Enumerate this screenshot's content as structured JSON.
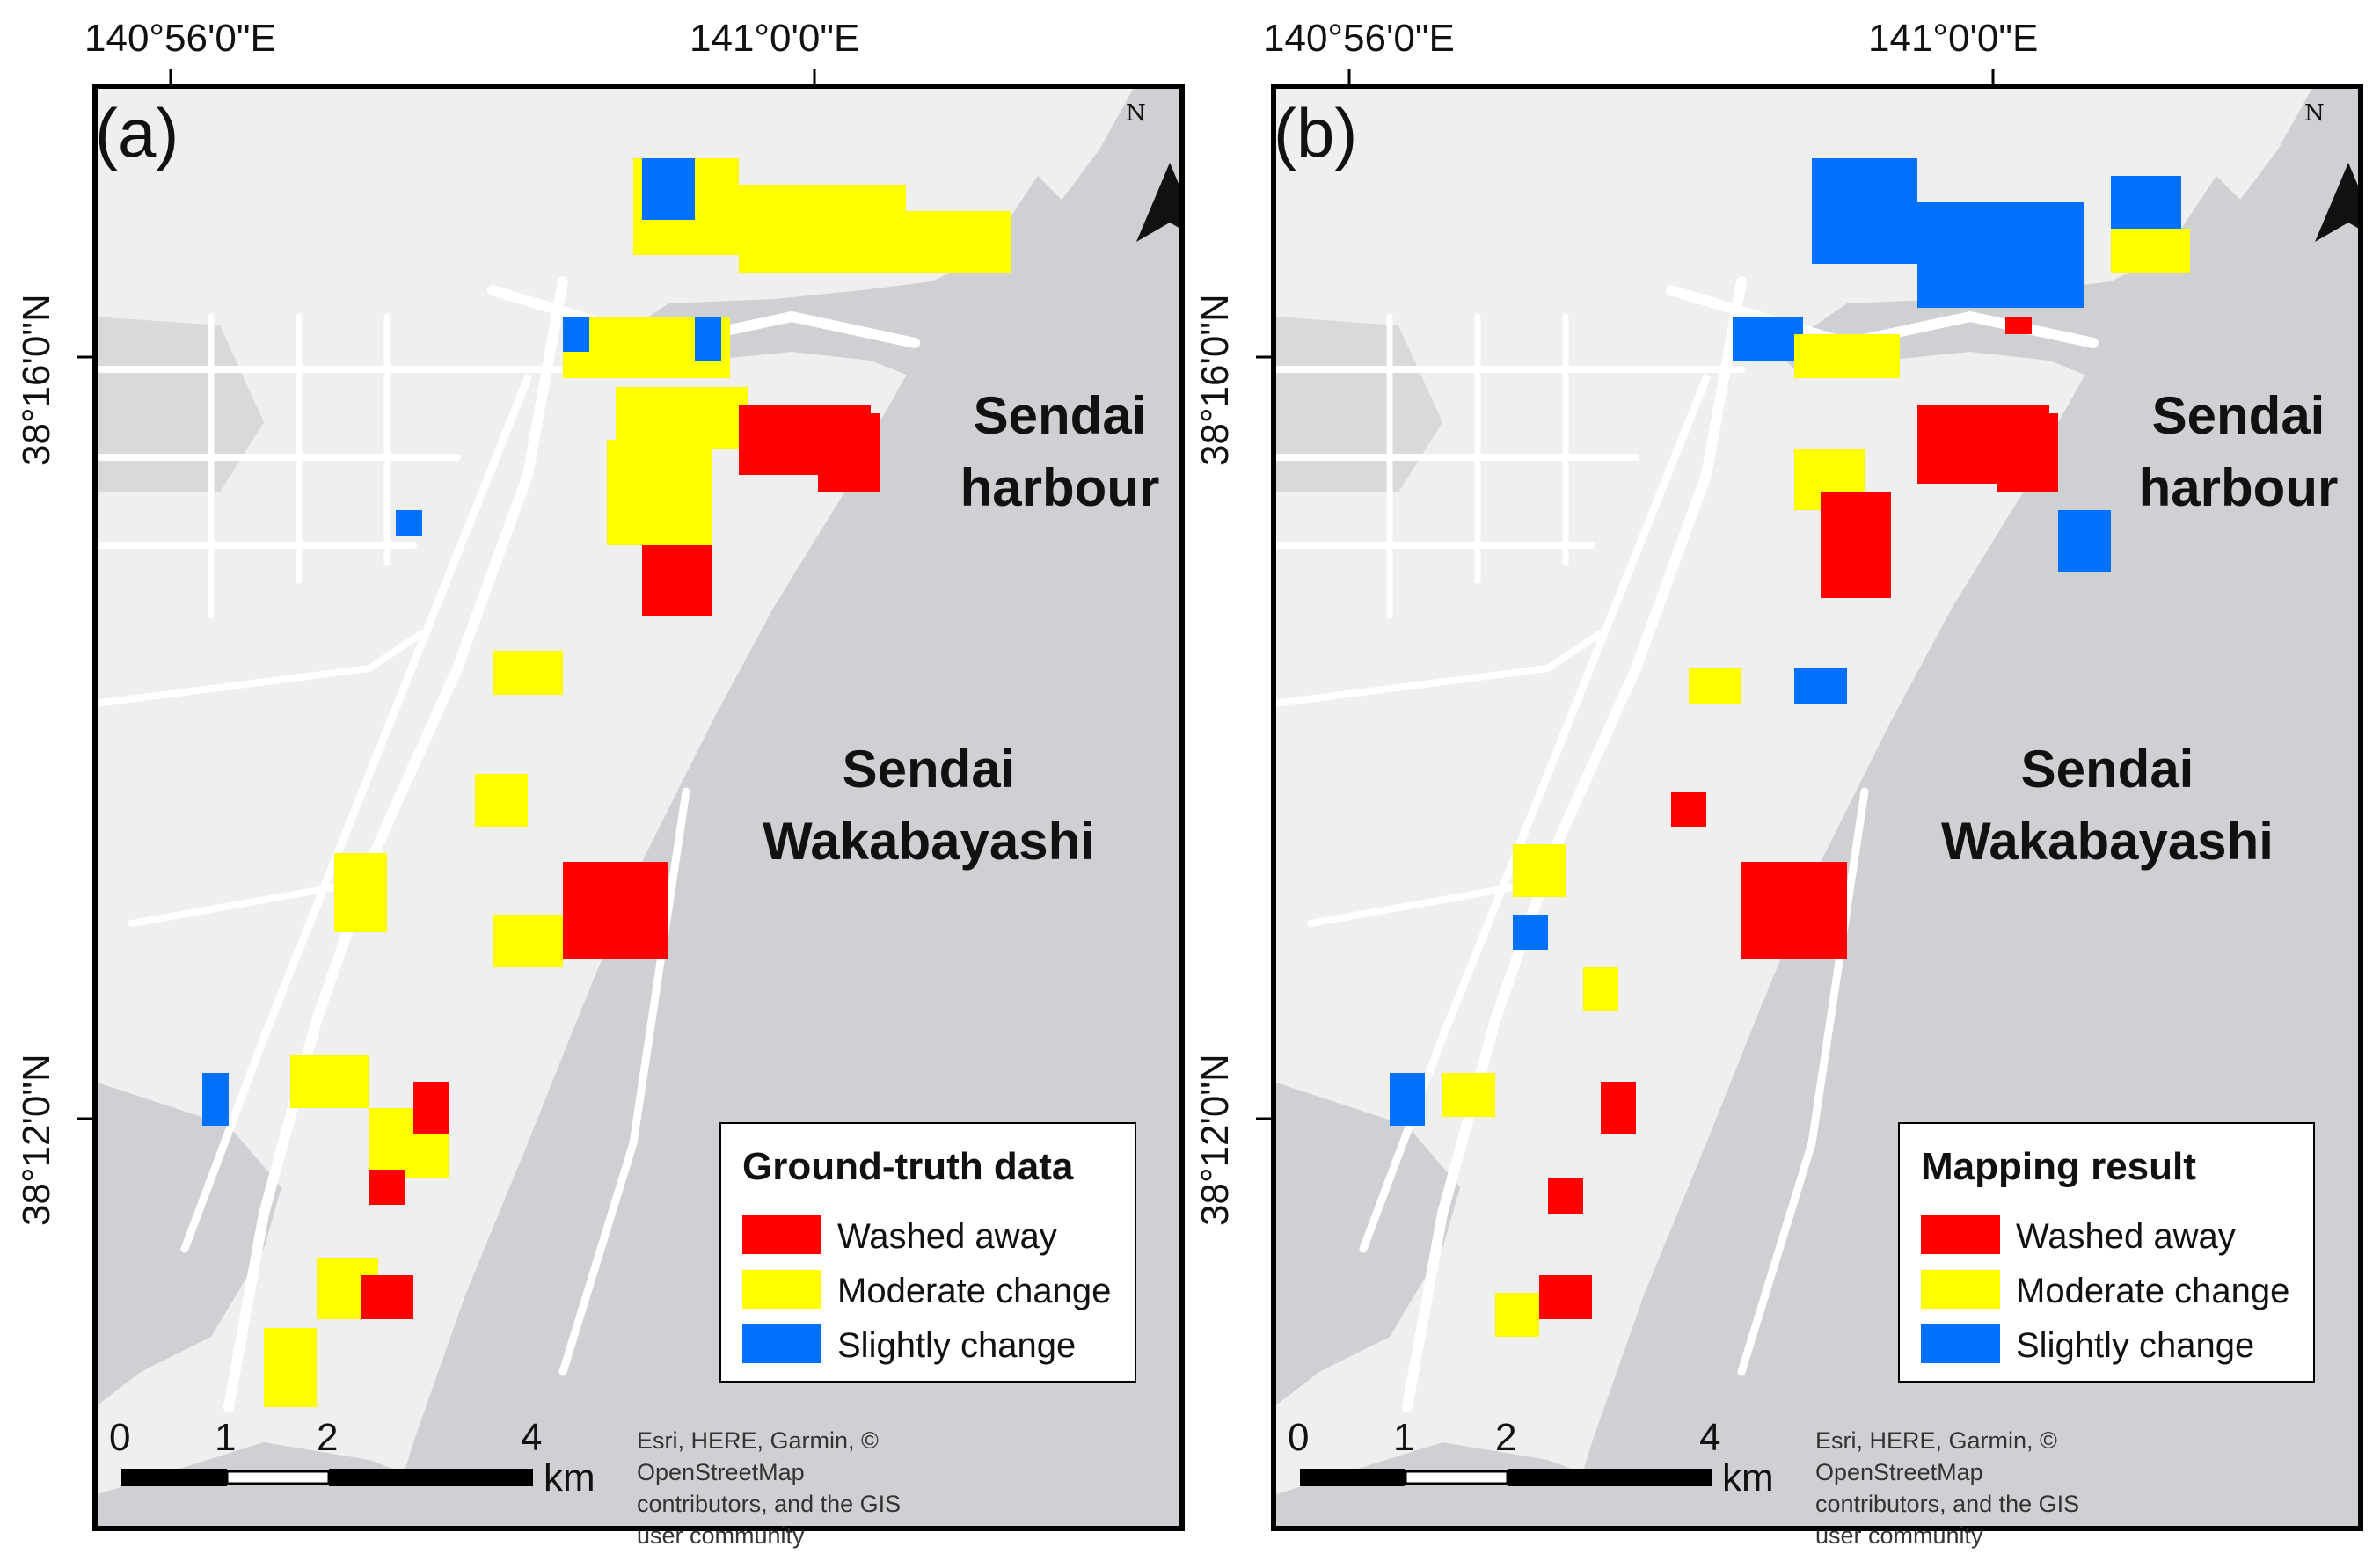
{
  "map": {
    "graticule": {
      "lon_labels": [
        "140°56'0\"E",
        "141°0'0\"E"
      ],
      "lat_labels": [
        "38°16'0\"N",
        "38°12'0\"N"
      ]
    },
    "places": {
      "harbour_line1": "Sendai",
      "harbour_line2": "harbour",
      "area_line1": "Sendai",
      "area_line2": "Wakabayashi"
    },
    "north_label": "N",
    "scalebar": {
      "ticks": [
        "0",
        "1",
        "2",
        "4"
      ],
      "unit": "km"
    },
    "attribution": "Esri, HERE, Garmin, © OpenStreetMap contributors, and the GIS user community"
  },
  "classes": [
    {
      "label": "Washed away",
      "color": "#ff0000"
    },
    {
      "label": "Moderate change",
      "color": "#ffff00"
    },
    {
      "label": "Slightly change",
      "color": "#0070ff"
    }
  ],
  "colors": {
    "land": "#efefef",
    "water": "#cfd0d3",
    "road": "#ffffff"
  },
  "panels": [
    {
      "letter": "(a)",
      "legend_title": "Ground-truth data"
    },
    {
      "letter": "(b)",
      "legend_title": "Mapping result"
    }
  ]
}
